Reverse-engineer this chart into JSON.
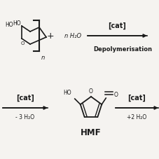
{
  "background_color": "#f5f3f0",
  "arrow_color": "#1a1a1a",
  "text_color": "#1a1a1a",
  "cat_label": "[cat]",
  "depolym_label": "Depolymerisation",
  "nh2o_label": "n H₂O",
  "minus3h2o_label": "- 3 H₂O",
  "plus2h2o_label": "+2 H₂O",
  "hmf_label": "HMF",
  "plus_label": "+",
  "subscript_n": "n"
}
